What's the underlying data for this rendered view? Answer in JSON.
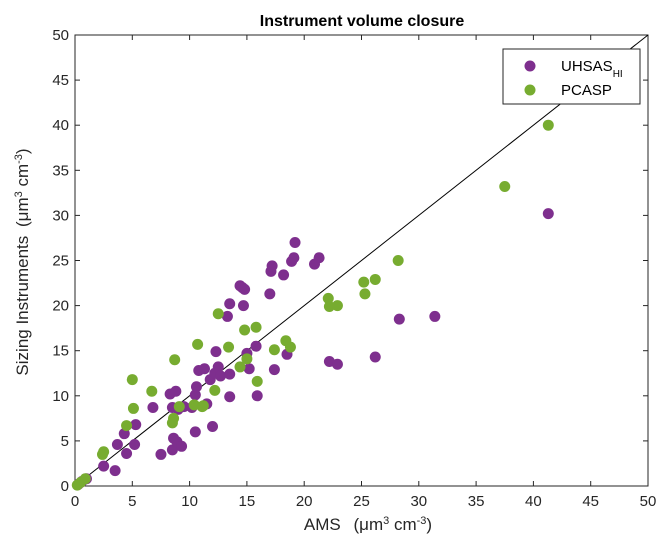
{
  "chart_data": {
    "type": "scatter",
    "title": "Instrument volume closure",
    "xlabel": "AMS",
    "xlabel_unit": {
      "prefix": "(μm",
      "sup1": "3",
      "mid": " cm",
      "sup2": "-3",
      "suffix": ")"
    },
    "ylabel": "Sizing Instruments",
    "ylabel_unit": {
      "prefix": "(μm",
      "sup1": "3",
      "mid": " cm",
      "sup2": "-3",
      "suffix": ")"
    },
    "xlim": [
      0,
      50
    ],
    "ylim": [
      0,
      50
    ],
    "xticks": [
      "0",
      "5",
      "10",
      "15",
      "20",
      "25",
      "30",
      "35",
      "40",
      "45",
      "50"
    ],
    "yticks": [
      "0",
      "5",
      "10",
      "15",
      "20",
      "25",
      "30",
      "35",
      "40",
      "45",
      "50"
    ],
    "grid": false,
    "legend_position": "top-right",
    "reference_line": {
      "slope": 1,
      "intercept": 0,
      "color": "#000000"
    },
    "series": [
      {
        "name": "UHSAS",
        "name_sub": "HI",
        "color": "#7e2f8e",
        "points": [
          [
            0.3,
            0.2
          ],
          [
            0.6,
            0.5
          ],
          [
            1.0,
            0.8
          ],
          [
            2.5,
            2.2
          ],
          [
            3.5,
            1.7
          ],
          [
            3.7,
            4.6
          ],
          [
            4.3,
            5.8
          ],
          [
            4.5,
            3.6
          ],
          [
            5.2,
            4.6
          ],
          [
            5.3,
            6.8
          ],
          [
            6.8,
            8.7
          ],
          [
            7.5,
            3.5
          ],
          [
            8.3,
            10.2
          ],
          [
            8.5,
            8.7
          ],
          [
            8.5,
            4.0
          ],
          [
            8.6,
            5.3
          ],
          [
            8.8,
            10.5
          ],
          [
            8.9,
            4.9
          ],
          [
            9.0,
            8.5
          ],
          [
            9.3,
            4.4
          ],
          [
            9.5,
            8.8
          ],
          [
            10.2,
            8.7
          ],
          [
            10.5,
            10.1
          ],
          [
            10.6,
            11.0
          ],
          [
            10.8,
            12.8
          ],
          [
            10.5,
            6.0
          ],
          [
            11.3,
            13.0
          ],
          [
            11.5,
            9.1
          ],
          [
            11.8,
            11.8
          ],
          [
            12.0,
            6.6
          ],
          [
            12.2,
            12.5
          ],
          [
            12.3,
            14.9
          ],
          [
            12.5,
            13.2
          ],
          [
            12.7,
            12.2
          ],
          [
            13.5,
            12.4
          ],
          [
            13.3,
            18.8
          ],
          [
            13.5,
            20.2
          ],
          [
            13.5,
            9.9
          ],
          [
            14.4,
            22.2
          ],
          [
            14.6,
            22.0
          ],
          [
            14.8,
            21.8
          ],
          [
            14.7,
            20.0
          ],
          [
            15.0,
            14.7
          ],
          [
            15.2,
            13.0
          ],
          [
            15.8,
            15.5
          ],
          [
            15.9,
            10.0
          ],
          [
            17.0,
            21.3
          ],
          [
            17.1,
            23.8
          ],
          [
            17.2,
            24.4
          ],
          [
            17.4,
            12.9
          ],
          [
            18.2,
            23.4
          ],
          [
            18.5,
            14.6
          ],
          [
            18.9,
            24.9
          ],
          [
            19.1,
            25.3
          ],
          [
            19.2,
            27.0
          ],
          [
            20.9,
            24.6
          ],
          [
            21.3,
            25.3
          ],
          [
            22.2,
            13.8
          ],
          [
            22.9,
            13.5
          ],
          [
            26.2,
            14.3
          ],
          [
            28.3,
            18.5
          ],
          [
            31.4,
            18.8
          ],
          [
            41.3,
            30.2
          ]
        ]
      },
      {
        "name": "PCASP",
        "name_sub": "",
        "color": "#77ac30",
        "points": [
          [
            0.2,
            0.1
          ],
          [
            0.5,
            0.4
          ],
          [
            0.9,
            0.8
          ],
          [
            2.4,
            3.5
          ],
          [
            2.5,
            3.8
          ],
          [
            4.5,
            6.7
          ],
          [
            5.0,
            11.8
          ],
          [
            5.1,
            8.6
          ],
          [
            6.7,
            10.5
          ],
          [
            8.6,
            7.5
          ],
          [
            8.7,
            14.0
          ],
          [
            8.5,
            7.0
          ],
          [
            9.1,
            8.8
          ],
          [
            10.4,
            9.0
          ],
          [
            10.7,
            15.7
          ],
          [
            11.1,
            8.8
          ],
          [
            11.2,
            8.9
          ],
          [
            12.2,
            10.6
          ],
          [
            12.5,
            19.1
          ],
          [
            13.4,
            15.4
          ],
          [
            14.4,
            13.2
          ],
          [
            14.8,
            17.3
          ],
          [
            15.0,
            14.1
          ],
          [
            15.8,
            17.6
          ],
          [
            15.9,
            11.6
          ],
          [
            17.4,
            15.1
          ],
          [
            18.4,
            16.1
          ],
          [
            18.8,
            15.4
          ],
          [
            22.1,
            20.8
          ],
          [
            22.2,
            19.9
          ],
          [
            22.9,
            20.0
          ],
          [
            25.2,
            22.6
          ],
          [
            25.3,
            21.3
          ],
          [
            26.2,
            22.9
          ],
          [
            28.2,
            25.0
          ],
          [
            37.5,
            33.2
          ],
          [
            41.3,
            40.0
          ]
        ]
      }
    ]
  }
}
